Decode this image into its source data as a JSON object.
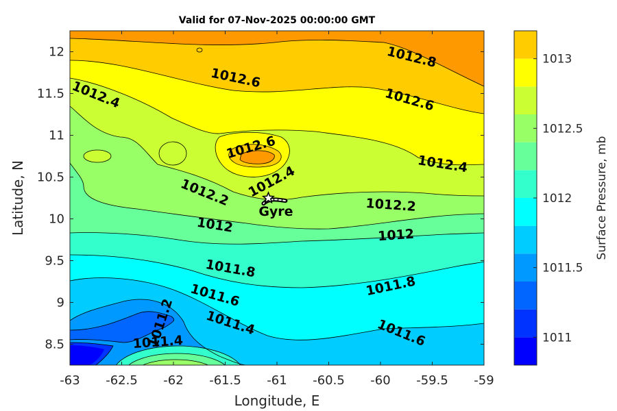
{
  "chart_data": {
    "type": "contour",
    "title": "Valid for 07-Nov-2025 00:00:00 GMT",
    "xlabel": "Longitude, E",
    "ylabel": "Latitude, N",
    "xlim": [
      -63,
      -59
    ],
    "ylim": [
      8.25,
      12.25
    ],
    "xticks": [
      "-63",
      "-62.5",
      "-62",
      "-61.5",
      "-61",
      "-60.5",
      "-60",
      "-59.5",
      "-59"
    ],
    "yticks": [
      "8.5",
      "9",
      "9.5",
      "10",
      "10.5",
      "11",
      "11.5",
      "12"
    ],
    "colorbar": {
      "label": "Surface Pressure, mb",
      "range": [
        1010.8,
        1013.2
      ],
      "ticks": [
        "1011",
        "1011.5",
        "1012",
        "1012.5",
        "1013"
      ],
      "levels": [
        1010.8,
        1011.0,
        1011.2,
        1011.4,
        1011.6,
        1011.8,
        1012.0,
        1012.2,
        1012.4,
        1012.6,
        1012.8,
        1013.0,
        1013.2
      ],
      "colors": [
        "#0000ff",
        "#0033ff",
        "#0066ff",
        "#0099ff",
        "#00ccff",
        "#00ffff",
        "#33ffcc",
        "#66ff99",
        "#99ff66",
        "#ccff33",
        "#ffff00",
        "#ffcc00",
        "#ff9900",
        "#ff6600",
        "#ff3300",
        "#ff0000"
      ]
    },
    "contour_labels": [
      {
        "text": "1012.8",
        "lon": -59.7,
        "lat": 11.93,
        "angle": 14
      },
      {
        "text": "1012.6",
        "lon": -61.4,
        "lat": 11.68,
        "angle": 12
      },
      {
        "text": "1012.6",
        "lon": -59.72,
        "lat": 11.42,
        "angle": 16
      },
      {
        "text": "1012.4",
        "lon": -62.75,
        "lat": 11.48,
        "angle": 22
      },
      {
        "text": "1012.6",
        "lon": -61.25,
        "lat": 10.85,
        "angle": -16
      },
      {
        "text": "1012.4",
        "lon": -61.05,
        "lat": 10.44,
        "angle": -28
      },
      {
        "text": "1012.4",
        "lon": -59.4,
        "lat": 10.65,
        "angle": 9
      },
      {
        "text": "1012.2",
        "lon": -61.7,
        "lat": 10.31,
        "angle": 22
      },
      {
        "text": "1012.2",
        "lon": -59.9,
        "lat": 10.16,
        "angle": 4
      },
      {
        "text": "1012",
        "lon": -61.6,
        "lat": 9.92,
        "angle": 9
      },
      {
        "text": "1012",
        "lon": -59.85,
        "lat": 9.8,
        "angle": -4
      },
      {
        "text": "1011.8",
        "lon": -61.45,
        "lat": 9.4,
        "angle": 10
      },
      {
        "text": "1011.8",
        "lon": -59.9,
        "lat": 9.19,
        "angle": -12
      },
      {
        "text": "1011.6",
        "lon": -61.6,
        "lat": 9.08,
        "angle": 16
      },
      {
        "text": "1011.6",
        "lon": -59.8,
        "lat": 8.63,
        "angle": 22
      },
      {
        "text": "1011.4",
        "lon": -61.45,
        "lat": 8.75,
        "angle": 18
      },
      {
        "text": "1011.4",
        "lon": -62.15,
        "lat": 8.52,
        "angle": -4
      },
      {
        "text": "1011.2",
        "lon": -62.12,
        "lat": 8.75,
        "angle": -72
      }
    ],
    "marker": {
      "label": "Gyre",
      "lon": -61.05,
      "lat": 10.2
    }
  }
}
